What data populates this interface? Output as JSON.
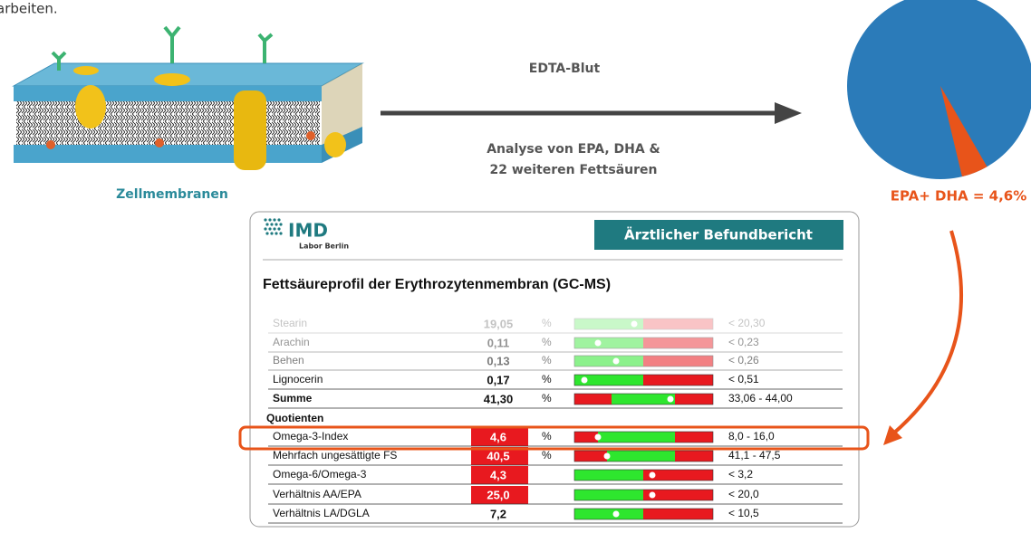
{
  "intro": "arbeiten.",
  "membrane_label": "Zellmembranen",
  "arrow_top": "EDTA-Blut",
  "arrow_bottom": [
    "Analyse von EPA, DHA &",
    "22 weiteren Fettsäuren"
  ],
  "pie": {
    "label": "EPA+ DHA = 4,6%",
    "values": [
      4.6
    ]
  },
  "report": {
    "logo": "IMD",
    "logo_sub": "Labor Berlin",
    "header": "Ärztlicher Befundbericht",
    "title": "Fettsäureprofil der Erythrozytenmembran (GC-MS)",
    "rows": [
      {
        "name": "Stearin",
        "value": "19,05",
        "unit": "%",
        "range": "< 20,30"
      },
      {
        "name": "Arachin",
        "value": "0,11",
        "unit": "%",
        "range": "< 0,23"
      },
      {
        "name": "Behen",
        "value": "0,13",
        "unit": "%",
        "range": "< 0,26"
      },
      {
        "name": "Lignocerin",
        "value": "0,17",
        "unit": "%",
        "range": "< 0,51"
      },
      {
        "name": "Summe",
        "value": "41,30",
        "unit": "%",
        "range": "33,06 - 44,00"
      }
    ],
    "section": "Quotienten",
    "quotients": [
      {
        "name": "Omega-3-Index",
        "value": "4,6",
        "unit": "%",
        "range": "8,0 - 16,0"
      },
      {
        "name": "Mehrfach ungesättigte FS",
        "value": "40,5",
        "unit": "%",
        "range": "41,1 - 47,5"
      },
      {
        "name": "Omega-6/Omega-3",
        "value": "4,3",
        "range": "< 3,2"
      },
      {
        "name": "Verhältnis AA/EPA",
        "value": "25,0",
        "range": "< 20,0"
      },
      {
        "name": "Verhältnis LA/DGLA",
        "value": "7,2",
        "range": "< 10,5"
      }
    ]
  }
}
